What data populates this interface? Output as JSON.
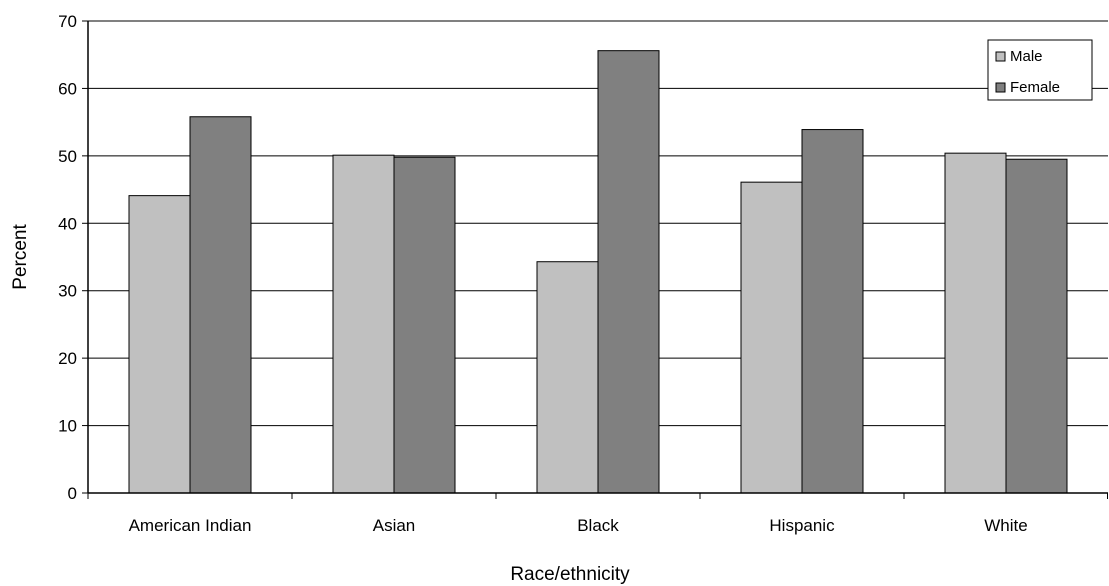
{
  "chart_data": {
    "type": "bar",
    "title": "",
    "xlabel": "Race/ethnicity",
    "ylabel": "Percent",
    "ylim": [
      0,
      70
    ],
    "yticks": [
      0,
      10,
      20,
      30,
      40,
      50,
      60,
      70
    ],
    "grid": true,
    "legend_position": "top-right",
    "categories": [
      "American Indian",
      "Asian",
      "Black",
      "Hispanic",
      "White"
    ],
    "series": [
      {
        "name": "Male",
        "color": "#c0c0c0",
        "values": [
          44.1,
          50.1,
          34.3,
          46.1,
          50.4
        ]
      },
      {
        "name": "Female",
        "color": "#808080",
        "values": [
          55.8,
          49.8,
          65.6,
          53.9,
          49.5
        ]
      }
    ]
  }
}
